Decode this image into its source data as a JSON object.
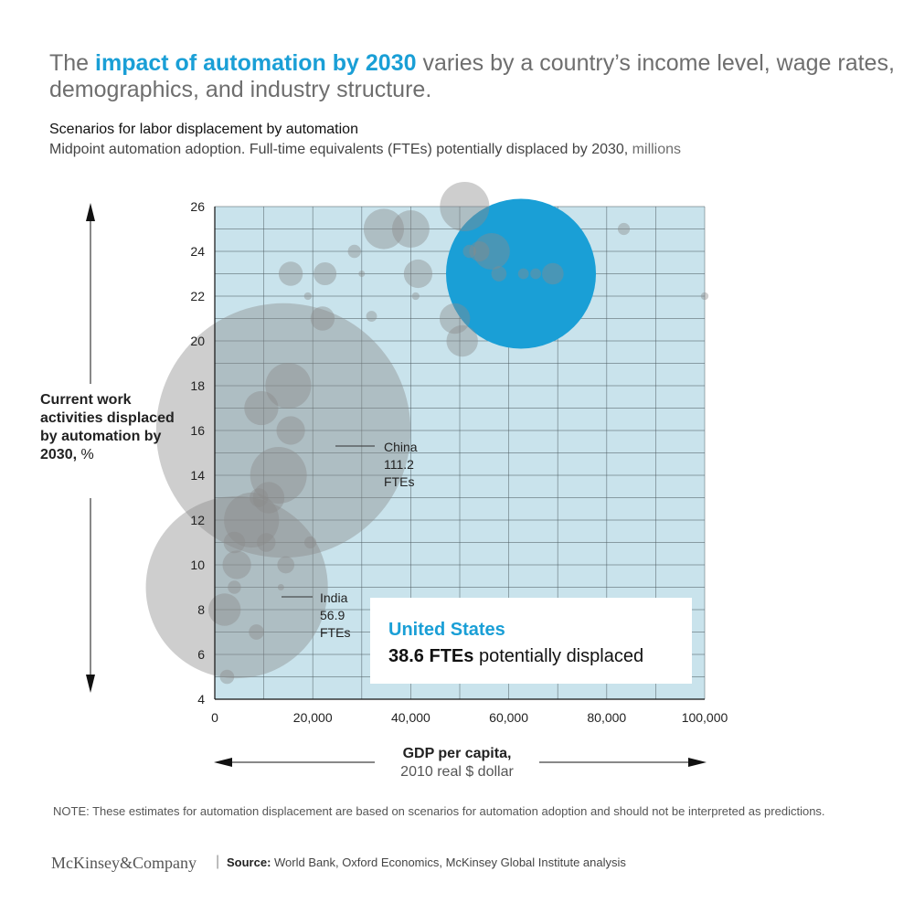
{
  "header": {
    "title_pre": "The ",
    "title_highlight": "impact of automation by 2030",
    "title_post": " varies by a country’s income level, wage rates, demographics, and industry structure.",
    "subtitle": "Scenarios for labor displacement by automation",
    "description": "Midpoint automation adoption. Full-time equivalents (FTEs) potentially displaced by 2030,",
    "description_unit": " millions"
  },
  "colors": {
    "accent": "#1a9fd6",
    "plot_bg": "#c9e3ec",
    "bubble": "#8a8a8a"
  },
  "chart_data": {
    "type": "scatter",
    "title": "Scenarios for labor displacement by automation",
    "xlabel": "GDP per capita,",
    "xlabel_unit": "2010 real $ dollar",
    "ylabel": "Current work activities displaced by automation by 2030,",
    "ylabel_unit": " %",
    "xlim": [
      0,
      100000
    ],
    "ylim": [
      4,
      26
    ],
    "x_ticks": [
      0,
      20000,
      40000,
      60000,
      80000,
      100000
    ],
    "x_tick_labels": [
      "0",
      "20,000",
      "40,000",
      "60,000",
      "80,000",
      "100,000"
    ],
    "y_ticks": [
      4,
      6,
      8,
      10,
      12,
      14,
      16,
      18,
      20,
      22,
      24,
      26
    ],
    "y_tick_labels": [
      "4",
      "6",
      "8",
      "10",
      "12",
      "14",
      "16",
      "18",
      "20",
      "22",
      "24",
      "26"
    ],
    "grid": true,
    "size_metric": "FTEs potentially displaced, millions",
    "points": [
      {
        "name": "China",
        "x": 14000,
        "y": 16.0,
        "fte": 111.2,
        "highlight": false
      },
      {
        "name": "India",
        "x": 4500,
        "y": 9.0,
        "fte": 56.9,
        "highlight": false
      },
      {
        "name": "United States",
        "x": 62500,
        "y": 23.0,
        "fte": 38.6,
        "highlight": true
      },
      {
        "name": "",
        "x": 51000,
        "y": 26.0,
        "fte": 4.2
      },
      {
        "name": "",
        "x": 83500,
        "y": 25.0,
        "fte": 0.25
      },
      {
        "name": "",
        "x": 100000,
        "y": 22.0,
        "fte": 0.1
      },
      {
        "name": "",
        "x": 34500,
        "y": 25.0,
        "fte": 2.8
      },
      {
        "name": "",
        "x": 40000,
        "y": 25.0,
        "fte": 2.4
      },
      {
        "name": "",
        "x": 28500,
        "y": 24.0,
        "fte": 0.3
      },
      {
        "name": "",
        "x": 15500,
        "y": 23.0,
        "fte": 1.0
      },
      {
        "name": "",
        "x": 22500,
        "y": 23.0,
        "fte": 0.9
      },
      {
        "name": "",
        "x": 30000,
        "y": 23.0,
        "fte": 0.05
      },
      {
        "name": "",
        "x": 41500,
        "y": 23.0,
        "fte": 1.4
      },
      {
        "name": "",
        "x": 19000,
        "y": 22.0,
        "fte": 0.1
      },
      {
        "name": "",
        "x": 41000,
        "y": 22.0,
        "fte": 0.1
      },
      {
        "name": "",
        "x": 22000,
        "y": 21.0,
        "fte": 1.0
      },
      {
        "name": "",
        "x": 32000,
        "y": 21.1,
        "fte": 0.2
      },
      {
        "name": "",
        "x": 49000,
        "y": 21.0,
        "fte": 1.6
      },
      {
        "name": "",
        "x": 50500,
        "y": 20.0,
        "fte": 1.7
      },
      {
        "name": "",
        "x": 52000,
        "y": 24.0,
        "fte": 0.3
      },
      {
        "name": "",
        "x": 54000,
        "y": 24.0,
        "fte": 0.7
      },
      {
        "name": "",
        "x": 56500,
        "y": 24.0,
        "fte": 2.3
      },
      {
        "name": "",
        "x": 58000,
        "y": 23.0,
        "fte": 0.4
      },
      {
        "name": "",
        "x": 63000,
        "y": 23.0,
        "fte": 0.2
      },
      {
        "name": "",
        "x": 65500,
        "y": 23.0,
        "fte": 0.2
      },
      {
        "name": "",
        "x": 69000,
        "y": 23.0,
        "fte": 0.8
      },
      {
        "name": "",
        "x": 15000,
        "y": 18.0,
        "fte": 3.6
      },
      {
        "name": "",
        "x": 9500,
        "y": 17.0,
        "fte": 2.0
      },
      {
        "name": "",
        "x": 15500,
        "y": 16.0,
        "fte": 1.4
      },
      {
        "name": "",
        "x": 13000,
        "y": 14.0,
        "fte": 5.5
      },
      {
        "name": "",
        "x": 11000,
        "y": 13.0,
        "fte": 1.7
      },
      {
        "name": "",
        "x": 9000,
        "y": 13.0,
        "fte": 0.6
      },
      {
        "name": "",
        "x": 7500,
        "y": 12.0,
        "fte": 5.2
      },
      {
        "name": "",
        "x": 4000,
        "y": 11.0,
        "fte": 0.8
      },
      {
        "name": "",
        "x": 10500,
        "y": 11.0,
        "fte": 0.6
      },
      {
        "name": "",
        "x": 19500,
        "y": 11.0,
        "fte": 0.25
      },
      {
        "name": "",
        "x": 4500,
        "y": 10.0,
        "fte": 1.4
      },
      {
        "name": "",
        "x": 14500,
        "y": 10.0,
        "fte": 0.5
      },
      {
        "name": "",
        "x": 4000,
        "y": 9.0,
        "fte": 0.3
      },
      {
        "name": "",
        "x": 13500,
        "y": 9.0,
        "fte": 0.05
      },
      {
        "name": "",
        "x": 2000,
        "y": 8.0,
        "fte": 1.8
      },
      {
        "name": "",
        "x": 8500,
        "y": 7.0,
        "fte": 0.4
      },
      {
        "name": "",
        "x": 2500,
        "y": 5.0,
        "fte": 0.35
      }
    ],
    "annotations": [
      {
        "name": "China",
        "lines": [
          "China",
          "111.2",
          "FTEs"
        ]
      },
      {
        "name": "India",
        "lines": [
          "India",
          "56.9",
          "FTEs"
        ]
      }
    ]
  },
  "callout": {
    "title": "United States",
    "value_bold": "38.6 FTEs",
    "value_rest": " potentially displaced"
  },
  "footer": {
    "note": "NOTE: These estimates for automation displacement are based on scenarios for automation adoption and should not be interpreted as predictions.",
    "logo": "McKinsey&Company",
    "separator": "|",
    "source_label": "Source:",
    "source_text": " World Bank, Oxford Economics, McKinsey Global Institute analysis"
  }
}
